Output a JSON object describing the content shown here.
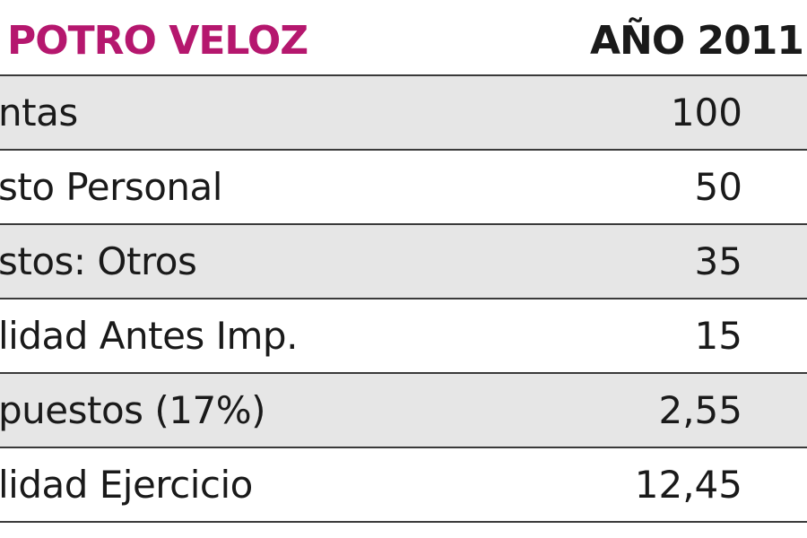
{
  "colors": {
    "title": "#b5176e",
    "text": "#1a1a1a",
    "shaded_row": "#e6e6e6",
    "plain_row": "#ffffff",
    "rule": "#3a3a3a"
  },
  "chart_data": {
    "type": "table",
    "title": "POTRO VELOZ",
    "column_header": "AÑO 2011",
    "rows": [
      {
        "label": "ntas",
        "value": "100"
      },
      {
        "label": "sto Personal",
        "value": "50"
      },
      {
        "label": "stos: Otros",
        "value": "35"
      },
      {
        "label": "lidad Antes Imp.",
        "value": "15"
      },
      {
        "label": "puestos (17%)",
        "value": "2,55"
      },
      {
        "label": "lidad Ejercicio",
        "value": "12,45"
      }
    ],
    "shaded_rows": [
      0,
      2,
      4
    ]
  }
}
